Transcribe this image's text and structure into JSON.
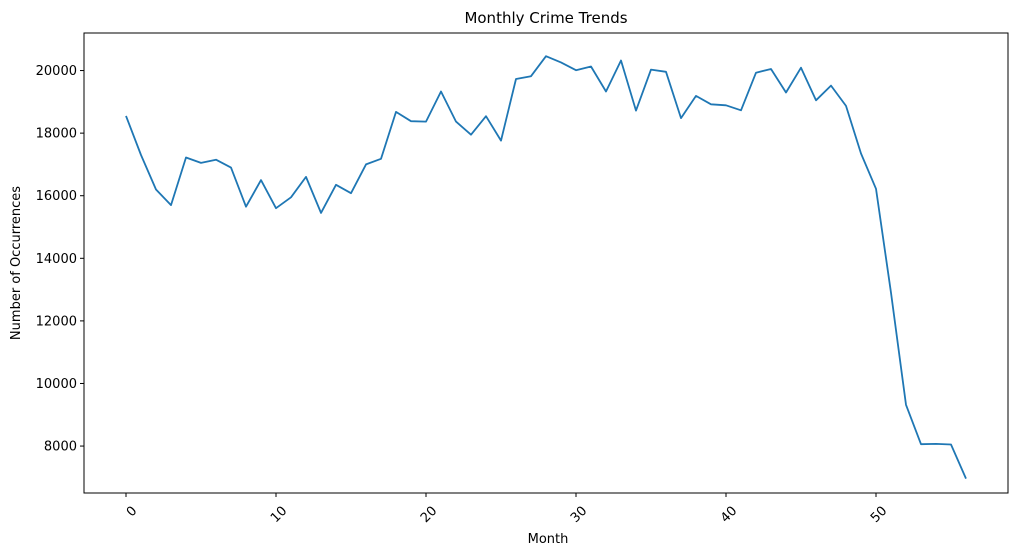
{
  "chart_data": {
    "type": "line",
    "title": "Monthly Crime Trends",
    "xlabel": "Month",
    "ylabel": "Number of Occurrences",
    "xlim": [
      -2.8,
      58.8
    ],
    "ylim": [
      6500,
      21200
    ],
    "xticks": [
      0,
      10,
      20,
      30,
      40,
      50
    ],
    "yticks": [
      8000,
      10000,
      12000,
      14000,
      16000,
      18000,
      20000
    ],
    "grid": false,
    "series": [
      {
        "color": "#1f77b4",
        "x": [
          0,
          1,
          2,
          3,
          4,
          5,
          6,
          7,
          8,
          9,
          10,
          11,
          12,
          13,
          14,
          15,
          16,
          17,
          18,
          19,
          20,
          21,
          22,
          23,
          24,
          25,
          26,
          27,
          28,
          29,
          30,
          31,
          32,
          33,
          34,
          35,
          36,
          37,
          38,
          39,
          40,
          41,
          42,
          43,
          44,
          45,
          46,
          47,
          48,
          49,
          50,
          51,
          52,
          53,
          54,
          55,
          56
        ],
        "values": [
          18550,
          17300,
          16200,
          15700,
          17220,
          17050,
          17150,
          16900,
          15650,
          16500,
          15600,
          15950,
          16600,
          15450,
          16350,
          16080,
          17000,
          17180,
          18680,
          18380,
          18370,
          19330,
          18370,
          17950,
          18540,
          17760,
          19730,
          19820,
          20460,
          20260,
          20010,
          20130,
          19330,
          20320,
          18720,
          20030,
          19960,
          18480,
          19190,
          18920,
          18890,
          18730,
          19930,
          20050,
          19300,
          20090,
          19050,
          19520,
          18870,
          17350,
          16220,
          12900,
          9320,
          8060,
          8070,
          8050,
          6960
        ]
      }
    ]
  }
}
